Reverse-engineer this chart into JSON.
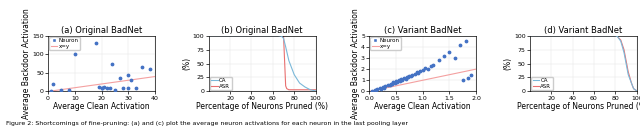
{
  "panel_a": {
    "title": "(a) Original BadNet",
    "xlabel": "Average Clean Activation",
    "ylabel": "Average Backdoor Activation",
    "xlim": [
      0,
      40
    ],
    "ylim": [
      0,
      150
    ],
    "xticks": [
      0,
      10,
      20,
      30,
      40
    ],
    "yticks": [
      0,
      50,
      100,
      150
    ],
    "scatter_x": [
      1,
      2,
      5,
      8,
      10,
      18,
      19,
      20,
      20,
      21,
      22,
      23,
      24,
      25,
      27,
      28,
      30,
      30,
      31,
      33,
      35,
      38
    ],
    "scatter_y": [
      2,
      20,
      5,
      5,
      100,
      130,
      12,
      10,
      8,
      12,
      10,
      8,
      75,
      5,
      35,
      10,
      45,
      8,
      30,
      10,
      65,
      60
    ],
    "line_x": [
      0,
      40
    ],
    "line_y": [
      0,
      40
    ],
    "legend_neuron": "Neuron",
    "legend_line": "x=y"
  },
  "panel_b": {
    "title": "(b) Original BadNet",
    "xlabel": "Percentage of Neurons Pruned (%)",
    "ylabel": "(%)",
    "xlim": [
      0,
      100
    ],
    "ylim": [
      0,
      100
    ],
    "xticks": [
      20,
      40,
      60,
      80,
      100
    ],
    "yticks": [
      0,
      25,
      50,
      75,
      100
    ],
    "ca_x": [
      0,
      60,
      65,
      68,
      70,
      72,
      75,
      80,
      85,
      90,
      95,
      100
    ],
    "ca_y": [
      100,
      100,
      100,
      99,
      95,
      80,
      55,
      30,
      15,
      8,
      3,
      1
    ],
    "asr_x": [
      0,
      60,
      65,
      68,
      70,
      72,
      73,
      75,
      80,
      85,
      90,
      95,
      100
    ],
    "asr_y": [
      100,
      100,
      100,
      100,
      100,
      10,
      5,
      3,
      3,
      3,
      3,
      3,
      3
    ],
    "legend_ca": "CA",
    "legend_asr": "ASR"
  },
  "panel_c": {
    "title": "(c) Variant BadNet",
    "xlabel": "Average Clean Activation",
    "ylabel": "Average Backdoor Activation",
    "xlim": [
      0,
      2
    ],
    "ylim": [
      0,
      5
    ],
    "xticks": [
      0,
      0.5,
      1.0,
      1.5,
      2.0
    ],
    "yticks": [
      0,
      1,
      2,
      3,
      4,
      5
    ],
    "scatter_x": [
      0.05,
      0.1,
      0.12,
      0.15,
      0.2,
      0.22,
      0.25,
      0.28,
      0.3,
      0.35,
      0.38,
      0.4,
      0.42,
      0.45,
      0.48,
      0.5,
      0.52,
      0.55,
      0.58,
      0.6,
      0.62,
      0.65,
      0.68,
      0.7,
      0.72,
      0.75,
      0.78,
      0.8,
      0.85,
      0.9,
      0.92,
      0.95,
      1.0,
      1.05,
      1.1,
      1.15,
      1.2,
      1.3,
      1.4,
      1.5,
      1.6,
      1.7,
      1.75,
      1.8,
      1.85,
      1.9
    ],
    "scatter_y": [
      0.05,
      0.15,
      0.1,
      0.2,
      0.3,
      0.25,
      0.4,
      0.35,
      0.5,
      0.6,
      0.55,
      0.7,
      0.65,
      0.8,
      0.75,
      0.9,
      0.85,
      1.0,
      0.95,
      1.1,
      1.05,
      1.2,
      1.15,
      1.3,
      1.25,
      1.4,
      1.35,
      1.5,
      1.6,
      1.7,
      1.65,
      1.8,
      1.9,
      2.1,
      2.0,
      2.3,
      2.4,
      2.8,
      3.2,
      3.5,
      3.0,
      4.2,
      1.0,
      4.5,
      1.2,
      1.5
    ],
    "line_x": [
      0,
      2
    ],
    "line_y": [
      0,
      2
    ],
    "legend_neuron": "Neuron",
    "legend_line": "x=y"
  },
  "panel_d": {
    "title": "(d) Variant BadNet",
    "xlabel": "Percentage of Neurons Pruned (%)",
    "ylabel": "(%)",
    "xlim": [
      0,
      100
    ],
    "ylim": [
      0,
      100
    ],
    "xticks": [
      20,
      40,
      60,
      80,
      100
    ],
    "yticks": [
      0,
      25,
      50,
      75,
      100
    ],
    "ca_x": [
      0,
      20,
      40,
      60,
      70,
      75,
      80,
      82,
      85,
      88,
      90,
      92,
      95,
      97,
      100
    ],
    "ca_y": [
      100,
      100,
      100,
      100,
      100,
      100,
      100,
      98,
      90,
      70,
      50,
      30,
      15,
      5,
      1
    ],
    "asr_x": [
      0,
      20,
      40,
      60,
      70,
      75,
      80,
      82,
      85,
      88,
      90,
      92,
      95,
      97,
      100
    ],
    "asr_y": [
      100,
      100,
      100,
      100,
      100,
      100,
      100,
      98,
      92,
      75,
      55,
      35,
      15,
      5,
      1
    ],
    "legend_ca": "CA",
    "legend_asr": "ASR"
  },
  "scatter_color": "#4472c4",
  "line_color": "#f4a0a0",
  "ca_color": "#7ab8d9",
  "asr_color": "#e87070",
  "caption": "Figure 2: Shortcomings of fine-pruning: (a) and (c) plot the average neuron activations for each neuron in the last pooling layer",
  "font_size": 5.5,
  "title_font_size": 6.0,
  "tick_font_size": 4.5
}
